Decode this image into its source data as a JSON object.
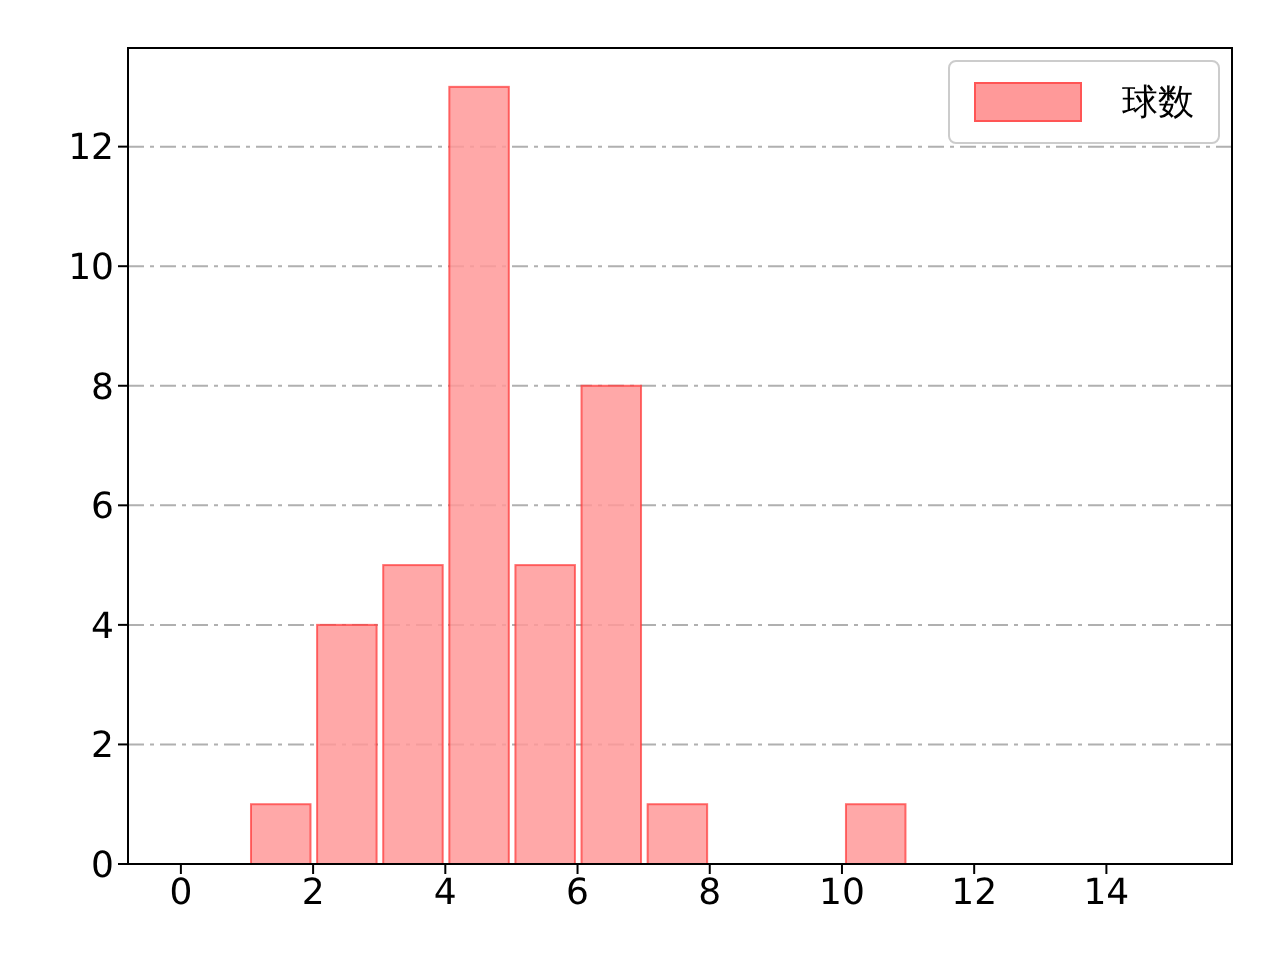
{
  "chart_data": {
    "type": "histogram",
    "bins": [
      1,
      2,
      3,
      4,
      5,
      6,
      7,
      8,
      9,
      10,
      11
    ],
    "series": [
      {
        "name": "球数",
        "color": "#ff9999",
        "values": [
          1,
          4,
          5,
          13,
          5,
          8,
          1,
          0,
          0,
          1
        ]
      }
    ],
    "xlim": [
      -0.8,
      15.9
    ],
    "xticks": [
      0,
      2,
      4,
      6,
      8,
      10,
      12,
      14
    ],
    "ylim": [
      0,
      13.65
    ],
    "yticks": [
      0,
      2,
      4,
      6,
      8,
      10,
      12
    ],
    "grid": "y",
    "legend": "top right"
  }
}
